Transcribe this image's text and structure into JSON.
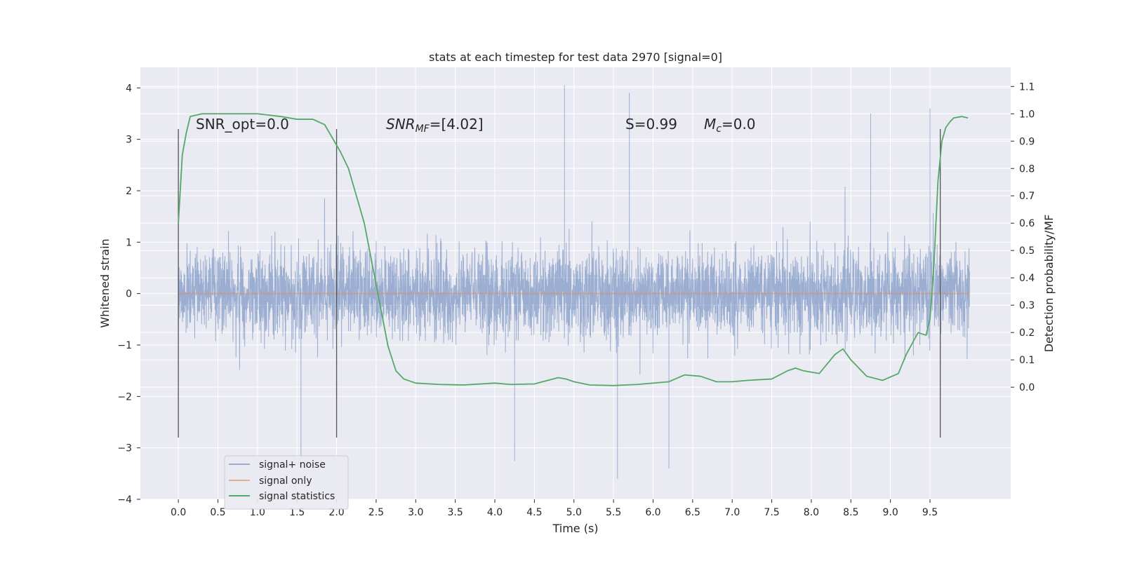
{
  "chart_data": {
    "type": "line",
    "title": "stats at each timestep for test data 2970 [signal=0]",
    "xlabel": "Time (s)",
    "ylabel": "Whitened strain",
    "y2label": "Detection probability/MF",
    "xlim": [
      -0.48,
      10.52
    ],
    "ylim": [
      -4.0,
      4.4
    ],
    "y2lim": [
      -0.41,
      1.17
    ],
    "xticks": [
      "0.0",
      "0.5",
      "1.0",
      "1.5",
      "2.0",
      "2.5",
      "3.0",
      "3.5",
      "4.0",
      "4.5",
      "5.0",
      "5.5",
      "6.0",
      "6.5",
      "7.0",
      "7.5",
      "8.0",
      "8.5",
      "9.0",
      "9.5"
    ],
    "yticks": [
      "4",
      "3",
      "2",
      "1",
      "0",
      "−1",
      "−2",
      "−3",
      "−4"
    ],
    "y2ticks": [
      "1.1",
      "1.0",
      "0.9",
      "0.8",
      "0.7",
      "0.6",
      "0.5",
      "0.4",
      "0.3",
      "0.2",
      "0.1",
      "0.0"
    ],
    "grid": true,
    "legend_position": "lower-left",
    "colors": {
      "background": "#eaeaf2",
      "grid": "#ffffff",
      "noise": "#4c72b0",
      "signal": "#dd8452",
      "stats": "#55a868",
      "marker": "#555555"
    },
    "annotations": {
      "snr_opt": "SNR_opt=0.0",
      "snr_mf_prefix": "SNR",
      "snr_mf_sub": "MF",
      "snr_mf_rest": "=[4.02]",
      "s_value": "S=0.99",
      "mc_prefix": "M",
      "mc_sub": "c",
      "mc_rest": "=0.0"
    },
    "markers_x": [
      0.0,
      2.0,
      9.63
    ],
    "series": [
      {
        "name": "signal+ noise",
        "description_envelope": {
          "x_range": [
            0.0,
            10.0
          ],
          "core_band": [
            -1.4,
            1.4
          ],
          "typical_peaks": [
            -2.6,
            2.6
          ],
          "max": 4.05,
          "min": -3.6
        }
      },
      {
        "name": "signal only",
        "x": [
          0.0,
          10.0
        ],
        "y": [
          0.0,
          0.0
        ]
      },
      {
        "name": "signal statistics",
        "x": [
          0.0,
          0.05,
          0.1,
          0.15,
          0.3,
          0.6,
          1.0,
          1.3,
          1.5,
          1.7,
          1.85,
          1.95,
          2.05,
          2.15,
          2.25,
          2.35,
          2.45,
          2.55,
          2.65,
          2.75,
          2.85,
          3.0,
          3.3,
          3.6,
          4.0,
          4.2,
          4.5,
          4.8,
          4.9,
          5.0,
          5.2,
          5.5,
          5.8,
          6.2,
          6.4,
          6.6,
          6.8,
          7.0,
          7.2,
          7.5,
          7.7,
          7.8,
          7.9,
          8.1,
          8.3,
          8.4,
          8.5,
          8.7,
          8.9,
          9.1,
          9.2,
          9.35,
          9.45,
          9.5,
          9.55,
          9.6,
          9.65,
          9.7,
          9.75,
          9.8,
          9.9,
          9.98
        ],
        "y": [
          0.6,
          0.85,
          0.93,
          0.99,
          1.0,
          1.0,
          1.0,
          0.99,
          0.98,
          0.98,
          0.96,
          0.91,
          0.86,
          0.8,
          0.7,
          0.6,
          0.45,
          0.3,
          0.15,
          0.06,
          0.03,
          0.015,
          0.01,
          0.008,
          0.015,
          0.01,
          0.012,
          0.035,
          0.03,
          0.02,
          0.008,
          0.006,
          0.01,
          0.02,
          0.045,
          0.04,
          0.02,
          0.02,
          0.025,
          0.03,
          0.06,
          0.07,
          0.06,
          0.05,
          0.12,
          0.14,
          0.1,
          0.04,
          0.025,
          0.05,
          0.12,
          0.2,
          0.19,
          0.25,
          0.45,
          0.75,
          0.9,
          0.95,
          0.97,
          0.985,
          0.99,
          0.985
        ]
      }
    ]
  }
}
